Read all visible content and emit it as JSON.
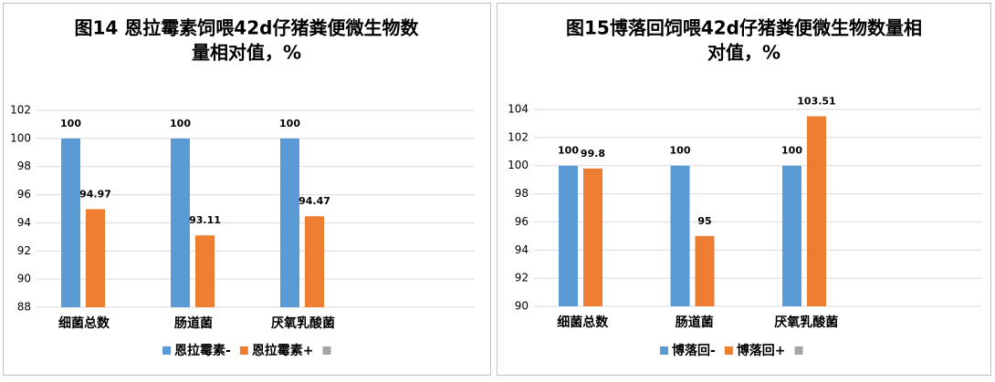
{
  "chart_data": [
    {
      "type": "bar",
      "title": [
        "图14 恩拉霉素饲喂42d仔猪粪便微生物数",
        "量相对值，%"
      ],
      "categories": [
        "细菌总数",
        "肠道菌",
        "厌氧乳酸菌",
        null
      ],
      "series": [
        {
          "name": "恩拉霉素-",
          "color": "#5b9bd5",
          "values": [
            100,
            100,
            100,
            null
          ]
        },
        {
          "name": "恩拉霉素+",
          "color": "#ed7d31",
          "values": [
            94.97,
            93.11,
            94.47,
            null
          ]
        },
        {
          "name": null,
          "color": "#a5a5a5",
          "values": [
            null,
            null,
            null,
            null
          ]
        }
      ],
      "ylim": [
        88,
        102
      ],
      "yticks": [
        88,
        90,
        92,
        94,
        96,
        98,
        100,
        102
      ],
      "grid": true,
      "legend": "bottom"
    },
    {
      "type": "bar",
      "title": [
        "图15博落回饲喂42d仔猪粪便微生物数量相",
        "对值，%"
      ],
      "categories": [
        "细菌总数",
        "肠道菌",
        "厌氧乳酸菌",
        null
      ],
      "series": [
        {
          "name": "博落回-",
          "color": "#5b9bd5",
          "values": [
            100,
            100,
            100,
            null
          ]
        },
        {
          "name": "博落回+",
          "color": "#ed7d31",
          "values": [
            99.8,
            95,
            103.51,
            null
          ]
        },
        {
          "name": null,
          "color": "#a5a5a5",
          "values": [
            null,
            null,
            null,
            null
          ]
        }
      ],
      "ylim": [
        90,
        104
      ],
      "yticks": [
        90,
        92,
        94,
        96,
        98,
        100,
        102,
        104
      ],
      "grid": true,
      "legend": "bottom"
    }
  ]
}
